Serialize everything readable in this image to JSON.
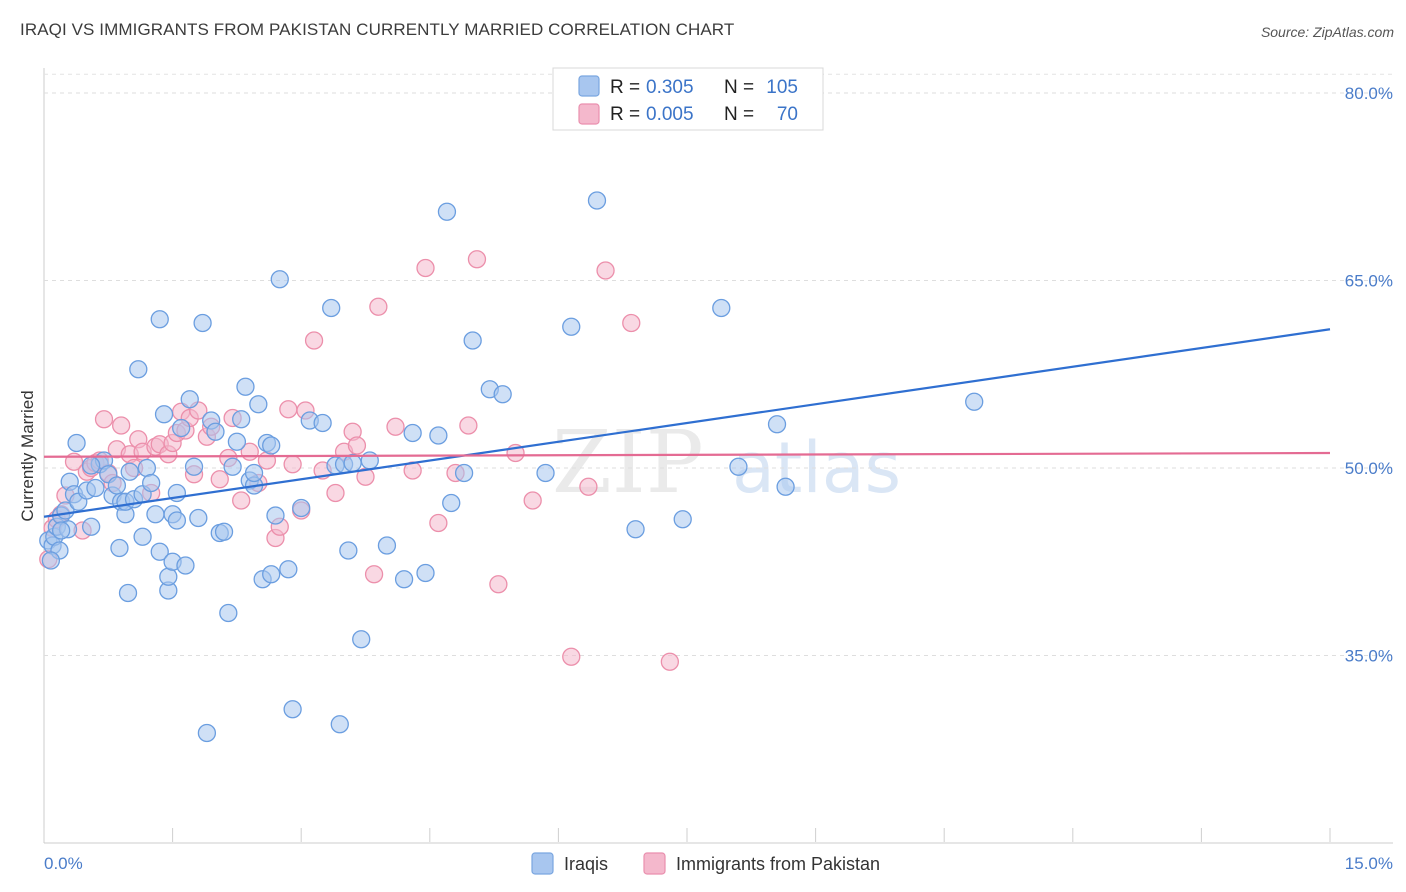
{
  "header": {
    "title": "IRAQI VS IMMIGRANTS FROM PAKISTAN CURRENTLY MARRIED CORRELATION CHART",
    "source": "Source: ZipAtlas.com"
  },
  "watermark": {
    "zip": "ZIP",
    "atlas": "atlas"
  },
  "legend": {
    "rows": [
      {
        "r_label": "R =",
        "r_value": "0.305",
        "n_label": "N =",
        "n_value": "105",
        "color": "#a8c6ef"
      },
      {
        "r_label": "R =",
        "r_value": "0.005",
        "n_label": "N =",
        "n_value": "70",
        "color": "#f4b8cc"
      }
    ]
  },
  "bottom_legend": {
    "items": [
      "Iraqis",
      "Immigrants from Pakistan"
    ]
  },
  "chart_data": {
    "type": "scatter",
    "title": "IRAQI VS IMMIGRANTS FROM PAKISTAN CURRENTLY MARRIED CORRELATION CHART",
    "xlabel": "",
    "ylabel": "Currently Married",
    "xlim": [
      0,
      15
    ],
    "ylim": [
      20,
      82
    ],
    "x_tick_labels": [
      "0.0%",
      "15.0%"
    ],
    "y_ticks": [
      35,
      50,
      65,
      80
    ],
    "y_tick_labels": [
      "35.0%",
      "50.0%",
      "65.0%",
      "80.0%"
    ],
    "grid": true,
    "legend_position": "top-center",
    "series": [
      {
        "name": "Iraqis",
        "color": "#6b9ee0",
        "fill": "#a8c6ef",
        "R": 0.305,
        "N": 105,
        "trend": {
          "x": [
            0,
            15
          ],
          "y": [
            46.1,
            61.1
          ],
          "color": "#2f6fd1"
        },
        "points": [
          [
            0.05,
            44.2
          ],
          [
            0.1,
            43.8
          ],
          [
            0.12,
            44.5
          ],
          [
            0.15,
            45.3
          ],
          [
            0.18,
            43.4
          ],
          [
            0.2,
            46.2
          ],
          [
            0.25,
            46.6
          ],
          [
            0.28,
            45.1
          ],
          [
            0.3,
            48.9
          ],
          [
            0.35,
            47.9
          ],
          [
            0.38,
            52.0
          ],
          [
            0.4,
            47.3
          ],
          [
            0.5,
            48.2
          ],
          [
            0.55,
            45.3
          ],
          [
            0.6,
            48.4
          ],
          [
            0.65,
            50.3
          ],
          [
            0.7,
            50.6
          ],
          [
            0.75,
            49.5
          ],
          [
            0.8,
            47.8
          ],
          [
            0.85,
            48.6
          ],
          [
            0.88,
            43.6
          ],
          [
            0.9,
            47.3
          ],
          [
            0.95,
            46.3
          ],
          [
            0.95,
            47.3
          ],
          [
            0.98,
            40.0
          ],
          [
            1.0,
            49.7
          ],
          [
            1.05,
            47.5
          ],
          [
            1.1,
            57.9
          ],
          [
            1.15,
            47.9
          ],
          [
            1.15,
            44.5
          ],
          [
            1.2,
            50.0
          ],
          [
            1.25,
            48.8
          ],
          [
            1.3,
            46.3
          ],
          [
            1.35,
            61.9
          ],
          [
            1.35,
            43.3
          ],
          [
            1.4,
            54.3
          ],
          [
            1.45,
            40.2
          ],
          [
            1.45,
            41.3
          ],
          [
            1.5,
            42.5
          ],
          [
            1.5,
            46.3
          ],
          [
            1.55,
            45.8
          ],
          [
            1.55,
            48.0
          ],
          [
            1.6,
            53.2
          ],
          [
            1.65,
            42.2
          ],
          [
            1.7,
            55.5
          ],
          [
            1.75,
            50.1
          ],
          [
            1.8,
            46.0
          ],
          [
            1.85,
            61.6
          ],
          [
            1.9,
            28.8
          ],
          [
            1.95,
            53.8
          ],
          [
            2.0,
            52.9
          ],
          [
            2.05,
            44.8
          ],
          [
            2.1,
            44.9
          ],
          [
            2.15,
            38.4
          ],
          [
            2.2,
            50.1
          ],
          [
            2.25,
            52.1
          ],
          [
            2.3,
            53.9
          ],
          [
            2.35,
            56.5
          ],
          [
            2.4,
            49.0
          ],
          [
            2.45,
            48.6
          ],
          [
            2.45,
            49.6
          ],
          [
            2.5,
            55.1
          ],
          [
            2.55,
            41.1
          ],
          [
            2.6,
            52.0
          ],
          [
            2.65,
            51.8
          ],
          [
            2.65,
            41.5
          ],
          [
            2.7,
            46.2
          ],
          [
            2.75,
            65.1
          ],
          [
            2.85,
            41.9
          ],
          [
            2.9,
            30.7
          ],
          [
            3.0,
            46.8
          ],
          [
            3.1,
            53.8
          ],
          [
            3.25,
            53.6
          ],
          [
            3.35,
            62.8
          ],
          [
            3.4,
            50.2
          ],
          [
            3.45,
            29.5
          ],
          [
            3.5,
            50.3
          ],
          [
            3.55,
            43.4
          ],
          [
            3.6,
            50.4
          ],
          [
            3.7,
            36.3
          ],
          [
            3.8,
            50.6
          ],
          [
            4.0,
            43.8
          ],
          [
            4.2,
            41.1
          ],
          [
            4.3,
            52.8
          ],
          [
            4.45,
            41.6
          ],
          [
            4.6,
            52.6
          ],
          [
            4.7,
            70.5
          ],
          [
            4.75,
            47.2
          ],
          [
            4.9,
            49.6
          ],
          [
            5.0,
            60.2
          ],
          [
            5.2,
            56.3
          ],
          [
            5.35,
            55.9
          ],
          [
            5.85,
            49.6
          ],
          [
            6.15,
            61.3
          ],
          [
            6.45,
            71.4
          ],
          [
            6.9,
            45.1
          ],
          [
            7.45,
            45.9
          ],
          [
            7.9,
            62.8
          ],
          [
            8.1,
            50.1
          ],
          [
            8.55,
            53.5
          ],
          [
            8.65,
            48.5
          ],
          [
            10.85,
            55.3
          ],
          [
            0.08,
            42.6
          ],
          [
            0.2,
            45.0
          ],
          [
            0.55,
            50.2
          ]
        ]
      },
      {
        "name": "Immigrants from Pakistan",
        "color": "#ec8fab",
        "fill": "#f4b8cc",
        "R": 0.005,
        "N": 70,
        "trend": {
          "x": [
            0,
            15
          ],
          "y": [
            50.9,
            51.2
          ],
          "color": "#e46b93"
        },
        "points": [
          [
            0.05,
            42.7
          ],
          [
            0.1,
            45.2
          ],
          [
            0.15,
            45.9
          ],
          [
            0.2,
            46.3
          ],
          [
            0.25,
            47.8
          ],
          [
            0.35,
            50.5
          ],
          [
            0.45,
            45.0
          ],
          [
            0.5,
            49.7
          ],
          [
            0.55,
            50.0
          ],
          [
            0.6,
            50.4
          ],
          [
            0.65,
            50.6
          ],
          [
            0.7,
            53.9
          ],
          [
            0.75,
            49.6
          ],
          [
            0.8,
            48.8
          ],
          [
            0.85,
            51.5
          ],
          [
            0.9,
            53.4
          ],
          [
            1.0,
            51.1
          ],
          [
            1.05,
            50.0
          ],
          [
            1.1,
            52.3
          ],
          [
            1.15,
            51.3
          ],
          [
            1.25,
            48.0
          ],
          [
            1.3,
            51.7
          ],
          [
            1.35,
            51.9
          ],
          [
            1.45,
            51.1
          ],
          [
            1.5,
            52.0
          ],
          [
            1.55,
            52.8
          ],
          [
            1.6,
            54.5
          ],
          [
            1.65,
            53.0
          ],
          [
            1.7,
            54.0
          ],
          [
            1.75,
            49.5
          ],
          [
            1.8,
            54.6
          ],
          [
            1.9,
            52.5
          ],
          [
            1.95,
            53.3
          ],
          [
            2.05,
            49.1
          ],
          [
            2.15,
            50.8
          ],
          [
            2.2,
            54.0
          ],
          [
            2.3,
            47.4
          ],
          [
            2.4,
            51.3
          ],
          [
            2.5,
            48.8
          ],
          [
            2.6,
            50.6
          ],
          [
            2.7,
            44.4
          ],
          [
            2.75,
            45.3
          ],
          [
            2.85,
            54.7
          ],
          [
            2.9,
            50.3
          ],
          [
            3.0,
            46.6
          ],
          [
            3.05,
            54.6
          ],
          [
            3.15,
            60.2
          ],
          [
            3.25,
            49.8
          ],
          [
            3.4,
            48.0
          ],
          [
            3.5,
            51.3
          ],
          [
            3.6,
            52.9
          ],
          [
            3.65,
            51.8
          ],
          [
            3.75,
            49.3
          ],
          [
            3.85,
            41.5
          ],
          [
            3.9,
            62.9
          ],
          [
            4.1,
            53.3
          ],
          [
            4.3,
            49.8
          ],
          [
            4.45,
            66.0
          ],
          [
            4.6,
            45.6
          ],
          [
            4.8,
            49.6
          ],
          [
            4.95,
            53.4
          ],
          [
            5.05,
            66.7
          ],
          [
            5.3,
            40.7
          ],
          [
            5.5,
            51.2
          ],
          [
            5.7,
            47.4
          ],
          [
            6.15,
            34.9
          ],
          [
            6.35,
            48.5
          ],
          [
            6.55,
            65.8
          ],
          [
            6.85,
            61.6
          ],
          [
            7.3,
            34.5
          ]
        ]
      }
    ]
  }
}
